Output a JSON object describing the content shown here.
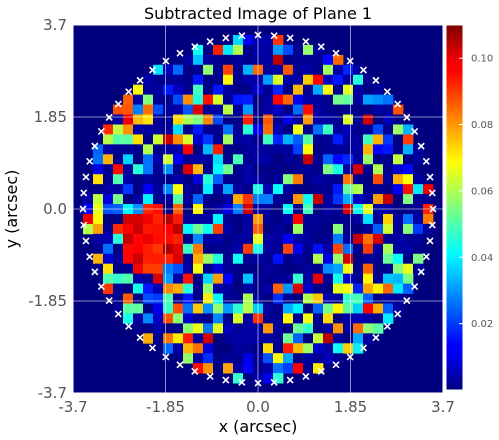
{
  "chart_data": {
    "type": "heatmap",
    "title": "Subtracted Image of Plane 1",
    "xlabel": "x (arcsec)",
    "ylabel": "y (arcsec)",
    "xlim": [
      -3.7,
      3.7
    ],
    "ylim": [
      -3.7,
      3.7
    ],
    "xticks": [
      "-3.7",
      "-1.85",
      "0.0",
      "1.85",
      "3.7"
    ],
    "yticks": [
      "-3.7",
      "-1.85",
      "0.0",
      "1.85",
      "3.7"
    ],
    "grid": true,
    "colormap": "jet",
    "colorbar": {
      "min": 0.0,
      "max": 0.11,
      "ticks": [
        "0.02",
        "0.04",
        "0.06",
        "0.08",
        "0.10"
      ]
    },
    "pixel_scale_arcsec": 0.2,
    "mask_radius_arcsec": 3.5,
    "mask_border_marker": "x",
    "mask_border_color": "#ffffff",
    "background_color": "#00007f",
    "bright_region": {
      "center_arcsec": [
        -2.1,
        -0.6
      ],
      "radius_arcsec": 0.65,
      "value": 0.105
    }
  }
}
